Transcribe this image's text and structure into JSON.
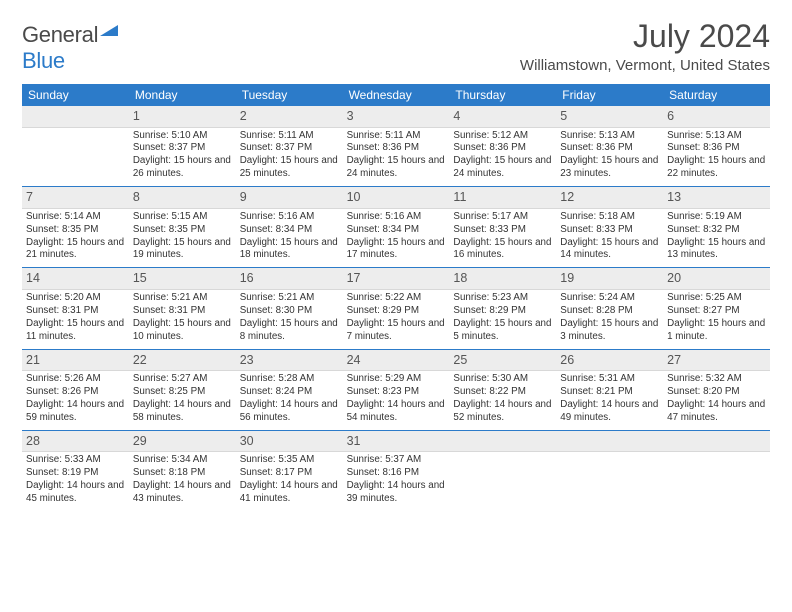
{
  "brand": {
    "word1": "General",
    "word2": "Blue"
  },
  "title": "July 2024",
  "location": "Williamstown, Vermont, United States",
  "colors": {
    "accent": "#2c7bc9",
    "header_text": "#ffffff",
    "daynum_bg": "#ededed",
    "body_text": "#333333",
    "rule": "#2c7bc9"
  },
  "layout": {
    "columns": 7,
    "rows": 5,
    "cell_font_pt": 7.5,
    "header_font_pt": 9,
    "title_font_pt": 24
  },
  "day_headers": [
    "Sunday",
    "Monday",
    "Tuesday",
    "Wednesday",
    "Thursday",
    "Friday",
    "Saturday"
  ],
  "weeks": [
    [
      {
        "n": "",
        "lines": []
      },
      {
        "n": "1",
        "lines": [
          "Sunrise: 5:10 AM",
          "Sunset: 8:37 PM",
          "Daylight: 15 hours and 26 minutes."
        ]
      },
      {
        "n": "2",
        "lines": [
          "Sunrise: 5:11 AM",
          "Sunset: 8:37 PM",
          "Daylight: 15 hours and 25 minutes."
        ]
      },
      {
        "n": "3",
        "lines": [
          "Sunrise: 5:11 AM",
          "Sunset: 8:36 PM",
          "Daylight: 15 hours and 24 minutes."
        ]
      },
      {
        "n": "4",
        "lines": [
          "Sunrise: 5:12 AM",
          "Sunset: 8:36 PM",
          "Daylight: 15 hours and 24 minutes."
        ]
      },
      {
        "n": "5",
        "lines": [
          "Sunrise: 5:13 AM",
          "Sunset: 8:36 PM",
          "Daylight: 15 hours and 23 minutes."
        ]
      },
      {
        "n": "6",
        "lines": [
          "Sunrise: 5:13 AM",
          "Sunset: 8:36 PM",
          "Daylight: 15 hours and 22 minutes."
        ]
      }
    ],
    [
      {
        "n": "7",
        "lines": [
          "Sunrise: 5:14 AM",
          "Sunset: 8:35 PM",
          "Daylight: 15 hours and 21 minutes."
        ]
      },
      {
        "n": "8",
        "lines": [
          "Sunrise: 5:15 AM",
          "Sunset: 8:35 PM",
          "Daylight: 15 hours and 19 minutes."
        ]
      },
      {
        "n": "9",
        "lines": [
          "Sunrise: 5:16 AM",
          "Sunset: 8:34 PM",
          "Daylight: 15 hours and 18 minutes."
        ]
      },
      {
        "n": "10",
        "lines": [
          "Sunrise: 5:16 AM",
          "Sunset: 8:34 PM",
          "Daylight: 15 hours and 17 minutes."
        ]
      },
      {
        "n": "11",
        "lines": [
          "Sunrise: 5:17 AM",
          "Sunset: 8:33 PM",
          "Daylight: 15 hours and 16 minutes."
        ]
      },
      {
        "n": "12",
        "lines": [
          "Sunrise: 5:18 AM",
          "Sunset: 8:33 PM",
          "Daylight: 15 hours and 14 minutes."
        ]
      },
      {
        "n": "13",
        "lines": [
          "Sunrise: 5:19 AM",
          "Sunset: 8:32 PM",
          "Daylight: 15 hours and 13 minutes."
        ]
      }
    ],
    [
      {
        "n": "14",
        "lines": [
          "Sunrise: 5:20 AM",
          "Sunset: 8:31 PM",
          "Daylight: 15 hours and 11 minutes."
        ]
      },
      {
        "n": "15",
        "lines": [
          "Sunrise: 5:21 AM",
          "Sunset: 8:31 PM",
          "Daylight: 15 hours and 10 minutes."
        ]
      },
      {
        "n": "16",
        "lines": [
          "Sunrise: 5:21 AM",
          "Sunset: 8:30 PM",
          "Daylight: 15 hours and 8 minutes."
        ]
      },
      {
        "n": "17",
        "lines": [
          "Sunrise: 5:22 AM",
          "Sunset: 8:29 PM",
          "Daylight: 15 hours and 7 minutes."
        ]
      },
      {
        "n": "18",
        "lines": [
          "Sunrise: 5:23 AM",
          "Sunset: 8:29 PM",
          "Daylight: 15 hours and 5 minutes."
        ]
      },
      {
        "n": "19",
        "lines": [
          "Sunrise: 5:24 AM",
          "Sunset: 8:28 PM",
          "Daylight: 15 hours and 3 minutes."
        ]
      },
      {
        "n": "20",
        "lines": [
          "Sunrise: 5:25 AM",
          "Sunset: 8:27 PM",
          "Daylight: 15 hours and 1 minute."
        ]
      }
    ],
    [
      {
        "n": "21",
        "lines": [
          "Sunrise: 5:26 AM",
          "Sunset: 8:26 PM",
          "Daylight: 14 hours and 59 minutes."
        ]
      },
      {
        "n": "22",
        "lines": [
          "Sunrise: 5:27 AM",
          "Sunset: 8:25 PM",
          "Daylight: 14 hours and 58 minutes."
        ]
      },
      {
        "n": "23",
        "lines": [
          "Sunrise: 5:28 AM",
          "Sunset: 8:24 PM",
          "Daylight: 14 hours and 56 minutes."
        ]
      },
      {
        "n": "24",
        "lines": [
          "Sunrise: 5:29 AM",
          "Sunset: 8:23 PM",
          "Daylight: 14 hours and 54 minutes."
        ]
      },
      {
        "n": "25",
        "lines": [
          "Sunrise: 5:30 AM",
          "Sunset: 8:22 PM",
          "Daylight: 14 hours and 52 minutes."
        ]
      },
      {
        "n": "26",
        "lines": [
          "Sunrise: 5:31 AM",
          "Sunset: 8:21 PM",
          "Daylight: 14 hours and 49 minutes."
        ]
      },
      {
        "n": "27",
        "lines": [
          "Sunrise: 5:32 AM",
          "Sunset: 8:20 PM",
          "Daylight: 14 hours and 47 minutes."
        ]
      }
    ],
    [
      {
        "n": "28",
        "lines": [
          "Sunrise: 5:33 AM",
          "Sunset: 8:19 PM",
          "Daylight: 14 hours and 45 minutes."
        ]
      },
      {
        "n": "29",
        "lines": [
          "Sunrise: 5:34 AM",
          "Sunset: 8:18 PM",
          "Daylight: 14 hours and 43 minutes."
        ]
      },
      {
        "n": "30",
        "lines": [
          "Sunrise: 5:35 AM",
          "Sunset: 8:17 PM",
          "Daylight: 14 hours and 41 minutes."
        ]
      },
      {
        "n": "31",
        "lines": [
          "Sunrise: 5:37 AM",
          "Sunset: 8:16 PM",
          "Daylight: 14 hours and 39 minutes."
        ]
      },
      {
        "n": "",
        "lines": []
      },
      {
        "n": "",
        "lines": []
      },
      {
        "n": "",
        "lines": []
      }
    ]
  ]
}
